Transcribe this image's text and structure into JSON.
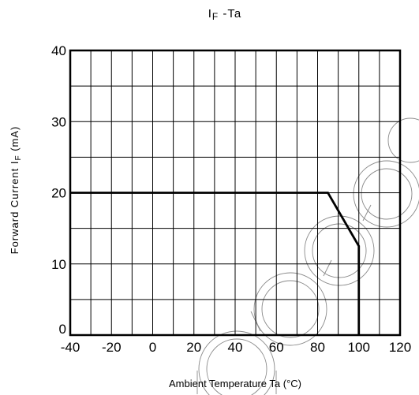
{
  "chart_data": {
    "type": "line",
    "title": {
      "main": "I",
      "sub": "F",
      "rest": " -Ta"
    },
    "xlabel": "Ambient Temperature Ta (°C)",
    "ylabel": {
      "main": "Forward Current I",
      "sub": "F",
      "unit": " (mA)"
    },
    "xlim": [
      -40,
      120
    ],
    "ylim": [
      0,
      40
    ],
    "xticks": [
      -40,
      -20,
      0,
      20,
      40,
      60,
      80,
      100,
      120
    ],
    "yticks": [
      0,
      10,
      20,
      30,
      40
    ],
    "x_minor_step": 10,
    "y_minor_step": 5,
    "grid": true,
    "series": [
      {
        "x": [
          -40,
          85,
          100,
          100
        ],
        "y": [
          20,
          20,
          12.5,
          0
        ]
      }
    ]
  },
  "colors": {
    "line": "#000000",
    "grid": "#000000",
    "watermark": "#8a8a8a"
  }
}
